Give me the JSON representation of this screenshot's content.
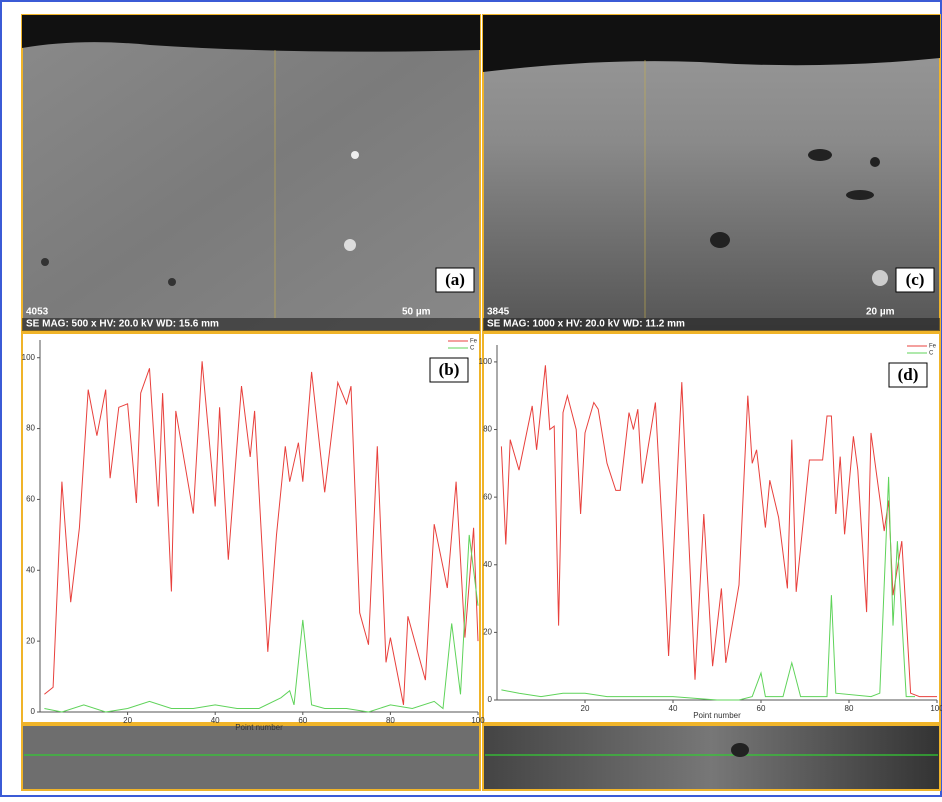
{
  "images": [
    {
      "label": "(a)",
      "id": "4053",
      "info": "SE  MAG: 500 x HV: 20.0 kV  WD: 15.6 mm",
      "scale": "50 µm"
    },
    {
      "label": "(c)",
      "id": "3845",
      "info": "SE  MAG: 1000 x HV: 20.0 kV  WD: 11.2 mm",
      "scale": "20 µm"
    }
  ],
  "chart_data": [
    {
      "type": "line",
      "label": "(b)",
      "xlabel": "Point number",
      "xlim": [
        0,
        100
      ],
      "ylim": [
        0,
        105
      ],
      "xticks": [
        20,
        40,
        60,
        80,
        100
      ],
      "yticks": [
        0,
        20,
        40,
        60,
        80,
        100
      ],
      "legend": "top-right",
      "series": [
        {
          "name": "Fe",
          "color": "#e8403c",
          "x": [
            1,
            3,
            5,
            7,
            9,
            11,
            13,
            15,
            16,
            18,
            20,
            22,
            23,
            25,
            27,
            28,
            30,
            31,
            35,
            37,
            40,
            41,
            43,
            46,
            48,
            49,
            52,
            54,
            56,
            57,
            59,
            60,
            62,
            65,
            68,
            70,
            71,
            73,
            75,
            77,
            79,
            80,
            83,
            84,
            88,
            90,
            93,
            95,
            97,
            99,
            100
          ],
          "values": [
            5,
            7,
            65,
            31,
            52,
            91,
            78,
            91,
            66,
            86,
            87,
            59,
            90,
            97,
            58,
            90,
            34,
            85,
            56,
            99,
            58,
            86,
            43,
            92,
            72,
            85,
            17,
            50,
            75,
            65,
            76,
            65,
            96,
            62,
            93,
            87,
            92,
            28,
            19,
            75,
            14,
            21,
            2,
            27,
            9,
            53,
            35,
            65,
            21,
            52,
            20
          ]
        },
        {
          "name": "C",
          "color": "#5fd35a",
          "x": [
            1,
            5,
            10,
            15,
            20,
            25,
            30,
            35,
            40,
            45,
            50,
            55,
            57,
            58,
            60,
            62,
            65,
            70,
            75,
            80,
            85,
            90,
            92,
            94,
            96,
            98,
            100
          ],
          "values": [
            1,
            0,
            2,
            0,
            1,
            3,
            1,
            1,
            2,
            1,
            1,
            4,
            6,
            2,
            26,
            2,
            1,
            1,
            0,
            2,
            1,
            3,
            1,
            25,
            5,
            50,
            30
          ]
        }
      ]
    },
    {
      "type": "line",
      "label": "(d)",
      "xlabel": "Point number",
      "xlim": [
        0,
        100
      ],
      "ylim": [
        0,
        105
      ],
      "xticks": [
        20,
        40,
        60,
        80,
        100
      ],
      "yticks": [
        0,
        20,
        40,
        60,
        80,
        100
      ],
      "legend": "top-right",
      "series": [
        {
          "name": "Fe",
          "color": "#e8403c",
          "x": [
            1,
            2,
            3,
            5,
            8,
            9,
            11,
            12,
            13,
            14,
            15,
            16,
            18,
            19,
            20,
            22,
            23,
            25,
            27,
            28,
            30,
            31,
            32,
            33,
            36,
            38,
            39,
            42,
            45,
            47,
            49,
            51,
            52,
            55,
            57,
            58,
            59,
            61,
            62,
            64,
            66,
            67,
            68,
            71,
            74,
            75,
            76,
            77,
            78,
            79,
            81,
            82,
            84,
            85,
            88,
            89,
            90,
            92,
            93,
            94,
            96,
            100
          ],
          "values": [
            75,
            46,
            77,
            68,
            87,
            74,
            99,
            80,
            81,
            22,
            85,
            90,
            80,
            55,
            79,
            88,
            86,
            70,
            62,
            62,
            85,
            80,
            86,
            64,
            88,
            40,
            13,
            94,
            6,
            55,
            10,
            33,
            11,
            34,
            90,
            70,
            74,
            51,
            65,
            54,
            33,
            77,
            32,
            71,
            71,
            84,
            84,
            55,
            72,
            49,
            78,
            68,
            26,
            79,
            50,
            59,
            31,
            47,
            25,
            2,
            1,
            1
          ]
        },
        {
          "name": "C",
          "color": "#5fd35a",
          "x": [
            1,
            5,
            10,
            15,
            20,
            25,
            30,
            35,
            40,
            50,
            55,
            58,
            60,
            61,
            65,
            67,
            69,
            75,
            76,
            77,
            85,
            87,
            89,
            90,
            91,
            93,
            95
          ],
          "values": [
            3,
            2,
            1,
            2,
            2,
            1,
            1,
            1,
            1,
            0,
            0,
            1,
            8,
            1,
            1,
            11,
            1,
            1,
            31,
            2,
            1,
            2,
            66,
            22,
            47,
            1,
            1
          ]
        }
      ]
    }
  ]
}
